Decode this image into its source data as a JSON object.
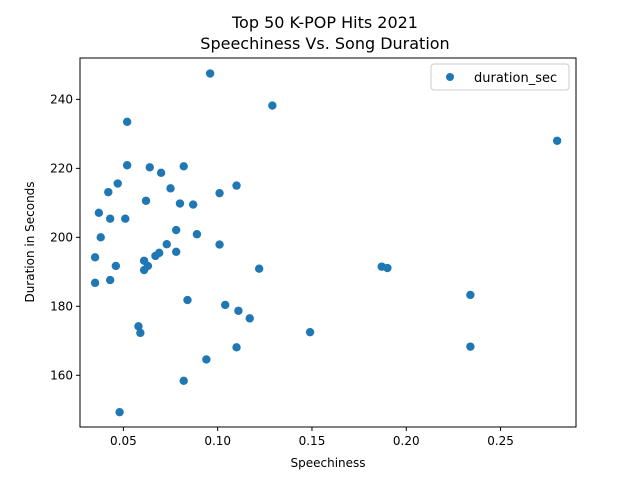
{
  "chart_data": {
    "type": "scatter",
    "title": "Top 50 K-POP Hits 2021",
    "subtitle": "Speechiness Vs. Song Duration",
    "xlabel": "Speechiness",
    "ylabel": "Duration in Seconds",
    "xlim": [
      0.027,
      0.29
    ],
    "ylim": [
      145,
      252
    ],
    "xticks": [
      0.05,
      0.1,
      0.15,
      0.2,
      0.25
    ],
    "xtick_labels": [
      "0.05",
      "0.10",
      "0.15",
      "0.20",
      "0.25"
    ],
    "yticks": [
      160,
      180,
      200,
      220,
      240
    ],
    "ytick_labels": [
      "160",
      "180",
      "200",
      "220",
      "240"
    ],
    "grid": false,
    "legend_position": "top-right",
    "series": [
      {
        "name": "duration_sec",
        "color": "#1f77b4",
        "points": [
          [
            0.035,
            194.2
          ],
          [
            0.035,
            186.8
          ],
          [
            0.037,
            207.1
          ],
          [
            0.038,
            200.0
          ],
          [
            0.042,
            213.1
          ],
          [
            0.043,
            205.4
          ],
          [
            0.043,
            187.6
          ],
          [
            0.046,
            191.7
          ],
          [
            0.047,
            215.6
          ],
          [
            0.048,
            149.3
          ],
          [
            0.051,
            205.4
          ],
          [
            0.052,
            233.5
          ],
          [
            0.052,
            220.9
          ],
          [
            0.058,
            174.2
          ],
          [
            0.059,
            172.3
          ],
          [
            0.061,
            193.2
          ],
          [
            0.061,
            190.5
          ],
          [
            0.062,
            210.6
          ],
          [
            0.063,
            191.7
          ],
          [
            0.064,
            220.3
          ],
          [
            0.067,
            194.6
          ],
          [
            0.069,
            195.5
          ],
          [
            0.07,
            218.7
          ],
          [
            0.073,
            198.0
          ],
          [
            0.075,
            214.2
          ],
          [
            0.078,
            202.1
          ],
          [
            0.078,
            195.8
          ],
          [
            0.08,
            209.8
          ],
          [
            0.082,
            220.6
          ],
          [
            0.082,
            158.4
          ],
          [
            0.084,
            181.8
          ],
          [
            0.087,
            209.5
          ],
          [
            0.089,
            200.9
          ],
          [
            0.094,
            164.6
          ],
          [
            0.096,
            247.5
          ],
          [
            0.101,
            212.8
          ],
          [
            0.101,
            197.9
          ],
          [
            0.104,
            180.4
          ],
          [
            0.11,
            215.0
          ],
          [
            0.11,
            168.1
          ],
          [
            0.111,
            178.7
          ],
          [
            0.117,
            176.5
          ],
          [
            0.122,
            190.9
          ],
          [
            0.129,
            238.2
          ],
          [
            0.149,
            172.5
          ],
          [
            0.187,
            191.5
          ],
          [
            0.19,
            191.1
          ],
          [
            0.234,
            183.3
          ],
          [
            0.234,
            168.3
          ],
          [
            0.28,
            228.0
          ]
        ]
      }
    ]
  }
}
